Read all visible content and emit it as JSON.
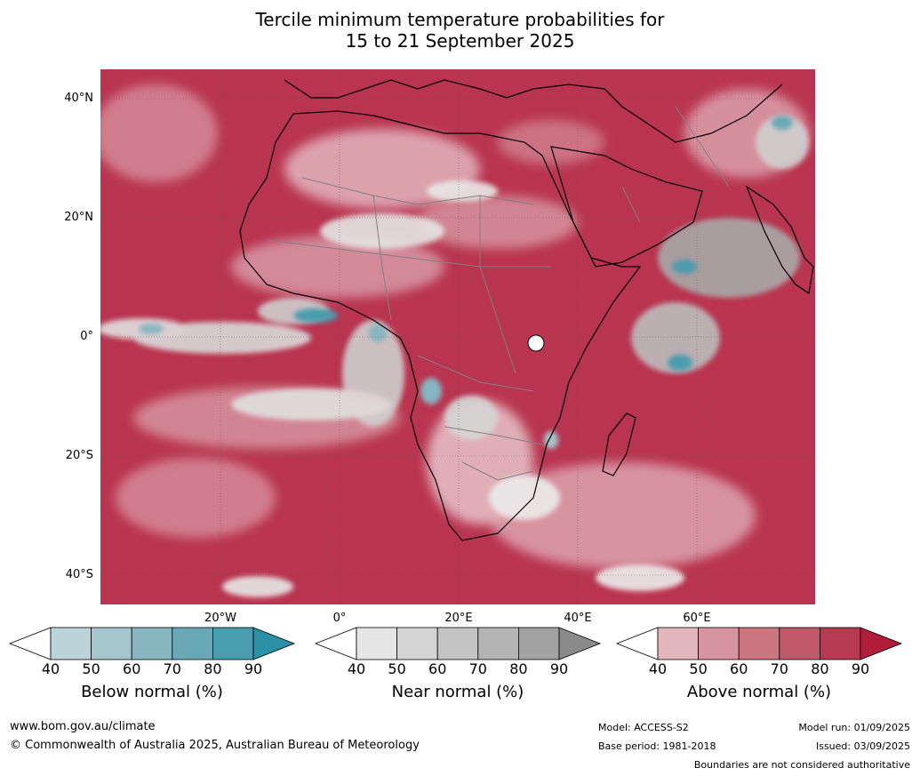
{
  "title": {
    "line1": "Tercile minimum temperature probabilities for",
    "line2": "15 to 21 September 2025"
  },
  "map": {
    "lat_labels": [
      "40°N",
      "20°N",
      "0°",
      "20°S",
      "40°S"
    ],
    "lon_labels": [
      "20°W",
      "0°",
      "20°E",
      "40°E",
      "60°E"
    ],
    "ocean_color": "#c4283f",
    "land_outline_color": "#000000",
    "border_color": "#808080"
  },
  "colorbars": [
    {
      "name": "below",
      "title": "Below normal (%)",
      "ticks": [
        "40",
        "50",
        "60",
        "70",
        "80",
        "90"
      ],
      "colors": [
        "#ffffff",
        "#bcd3da",
        "#a5c6cd",
        "#87b6c1",
        "#69a8b5",
        "#4a9caf",
        "#2b8fa6"
      ]
    },
    {
      "name": "near",
      "title": "Near normal (%)",
      "ticks": [
        "40",
        "50",
        "60",
        "70",
        "80",
        "90"
      ],
      "colors": [
        "#ffffff",
        "#e5e5e5",
        "#d4d4d4",
        "#c4c4c4",
        "#b4b4b4",
        "#a2a2a2",
        "#8a8a8a"
      ]
    },
    {
      "name": "above",
      "title": "Above normal (%)",
      "ticks": [
        "40",
        "50",
        "60",
        "70",
        "80",
        "90"
      ],
      "colors": [
        "#ffffff",
        "#e2b6bd",
        "#d6949e",
        "#ca7580",
        "#bf5869",
        "#b63a52",
        "#b01d3a"
      ]
    }
  ],
  "footer": {
    "website": "www.bom.gov.au/climate",
    "copyright": "© Commonwealth of Australia 2025, Australian Bureau of Meteorology",
    "model": "Model: ACCESS-S2",
    "base_period": "Base period: 1981-2018",
    "model_run": "Model run: 01/09/2025",
    "issued": "Issued: 03/09/2025",
    "disclaimer": "Boundaries are not considered authoritative"
  }
}
